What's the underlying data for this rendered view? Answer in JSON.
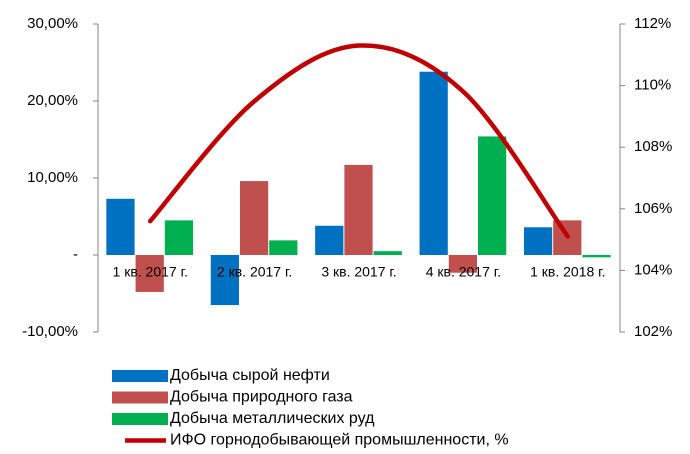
{
  "chart_data": {
    "type": "bar_line",
    "categories": [
      "1 кв. 2017 г.",
      "2 кв. 2017 г.",
      "3 кв. 2017 г.",
      "4 кв. 2017 г.",
      "1 кв. 2018 г."
    ],
    "series": [
      {
        "name": "Добыча сырой нефти",
        "color": "#0070c0",
        "type": "bar",
        "values": [
          7.3,
          -6.5,
          3.8,
          23.8,
          3.6
        ]
      },
      {
        "name": "Добыча природного газа",
        "color": "#c0504d",
        "type": "bar",
        "values": [
          -4.8,
          9.6,
          11.7,
          -2.3,
          4.5
        ]
      },
      {
        "name": "Добыча металлических руд",
        "color": "#00b050",
        "type": "bar",
        "values": [
          4.5,
          1.9,
          0.5,
          15.4,
          -0.3
        ]
      },
      {
        "name": "ИФО горнодобывающей промышленности, %",
        "color": "#c00000",
        "type": "line",
        "axis": "y2",
        "values": [
          105.6,
          109.5,
          111.3,
          109.8,
          105.1
        ]
      }
    ],
    "ylim": [
      -10,
      30
    ],
    "yticks": [
      {
        "value": -10,
        "label": "-10,00%"
      },
      {
        "value": 0,
        "label": "-"
      },
      {
        "value": 10,
        "label": "10,00%"
      },
      {
        "value": 20,
        "label": "20,00%"
      },
      {
        "value": 30,
        "label": "30,00%"
      }
    ],
    "y2lim": [
      102,
      112
    ],
    "y2ticks": [
      {
        "value": 102,
        "label": "102%"
      },
      {
        "value": 104,
        "label": "104%"
      },
      {
        "value": 106,
        "label": "106%"
      },
      {
        "value": 108,
        "label": "108%"
      },
      {
        "value": 110,
        "label": "110%"
      },
      {
        "value": 112,
        "label": "112%"
      }
    ],
    "grid": false,
    "legend": "bottom"
  }
}
